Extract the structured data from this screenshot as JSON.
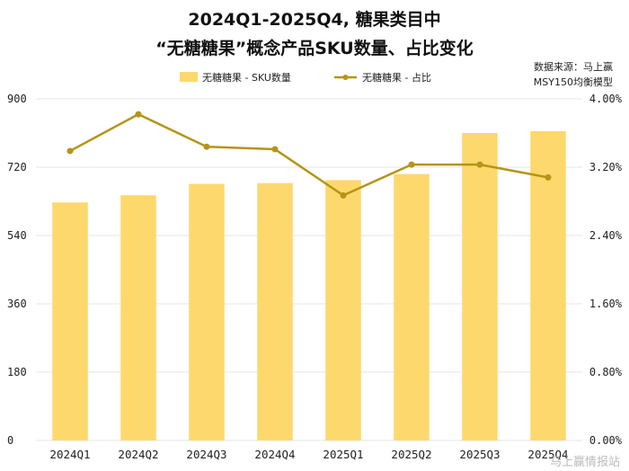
{
  "chart_data": {
    "type": "bar+line",
    "title": [
      "2024Q1-2025Q4, 糖果类目中",
      "“无糖糖果”概念产品SKU数量、占比变化"
    ],
    "categories": [
      "2024Q1",
      "2024Q2",
      "2024Q3",
      "2024Q4",
      "2025Q1",
      "2025Q2",
      "2025Q3",
      "2025Q4"
    ],
    "series": [
      {
        "name": "无糖糖果 - SKU数量",
        "type": "bar",
        "axis": "left",
        "values": [
          627,
          646,
          676,
          678,
          686,
          702,
          810,
          815
        ]
      },
      {
        "name": "无糖糖果 - 占比",
        "type": "line",
        "axis": "right",
        "unit": "%",
        "values": [
          3.39,
          3.82,
          3.44,
          3.41,
          2.87,
          3.23,
          3.23,
          3.08
        ]
      }
    ],
    "y_left": {
      "min": 0,
      "max": 900,
      "ticks": [
        "0",
        "180",
        "360",
        "540",
        "720",
        "900"
      ]
    },
    "y_right": {
      "min": 0,
      "max": 4.0,
      "ticks": [
        "0.00%",
        "0.80%",
        "1.60%",
        "2.40%",
        "3.20%",
        "4.00%"
      ]
    },
    "grid": true,
    "legend_position": "top",
    "source_lines": [
      "数据来源：马上赢",
      "MSY150均衡模型"
    ],
    "watermark": "马上赢情报站",
    "colors": {
      "bar": "#FDD86D",
      "line": "#B59417",
      "grid": "#e6e6e6"
    }
  }
}
